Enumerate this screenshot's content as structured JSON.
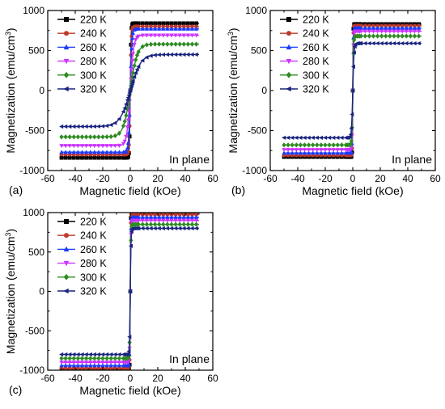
{
  "series_styles": [
    {
      "color": "#000000",
      "marker": "square"
    },
    {
      "color": "#c0392b",
      "marker": "circle"
    },
    {
      "color": "#1a3cff",
      "marker": "triangle-up"
    },
    {
      "color": "#cc33ff",
      "marker": "triangle-down"
    },
    {
      "color": "#2e8b22",
      "marker": "diamond"
    },
    {
      "color": "#1a237e",
      "marker": "triangle-left"
    }
  ],
  "chart_data": [
    {
      "type": "line",
      "panel_label": "(a)",
      "annotation": "In plane",
      "xlabel": "Magnetic field (kOe)",
      "ylabel_main": "Magnetization (emu/cm",
      "ylabel_sup": "3",
      "ylabel_close": ")",
      "xlim": [
        -60,
        60
      ],
      "ylim": [
        -1000,
        1000
      ],
      "xticks": [
        -60,
        -40,
        -20,
        0,
        20,
        40,
        60
      ],
      "yticks": [
        -1000,
        -500,
        0,
        500,
        1000
      ],
      "grid": false,
      "legend_position": "top-left",
      "series": [
        {
          "name": "220 K",
          "ms": 840,
          "h0": 0.6
        },
        {
          "name": "240 K",
          "ms": 800,
          "h0": 0.8
        },
        {
          "name": "260 K",
          "ms": 770,
          "h0": 1.2
        },
        {
          "name": "280 K",
          "ms": 690,
          "h0": 2.5
        },
        {
          "name": "300 K",
          "ms": 580,
          "h0": 5.0
        },
        {
          "name": "320 K",
          "ms": 450,
          "h0": 7.5
        }
      ]
    },
    {
      "type": "line",
      "panel_label": "(b)",
      "annotation": "In plane",
      "xlabel": "Magnetic field (kOe)",
      "ylabel_main": "Magnetization (emu/cm",
      "ylabel_sup": "3",
      "ylabel_close": ")",
      "xlim": [
        -60,
        60
      ],
      "ylim": [
        -1000,
        1000
      ],
      "xticks": [
        -60,
        -40,
        -20,
        0,
        20,
        40,
        60
      ],
      "yticks": [
        -1000,
        -500,
        0,
        500,
        1000
      ],
      "grid": false,
      "legend_position": "top-left",
      "series": [
        {
          "name": "220 K",
          "ms": 830,
          "h0": 0.3
        },
        {
          "name": "240 K",
          "ms": 810,
          "h0": 0.35
        },
        {
          "name": "260 K",
          "ms": 780,
          "h0": 0.4
        },
        {
          "name": "280 K",
          "ms": 740,
          "h0": 0.5
        },
        {
          "name": "300 K",
          "ms": 680,
          "h0": 0.6
        },
        {
          "name": "320 K",
          "ms": 590,
          "h0": 0.9
        }
      ]
    },
    {
      "type": "line",
      "panel_label": "(c)",
      "annotation": "In plane",
      "xlabel": "Magnetic field (kOe)",
      "ylabel_main": "Magnetization (emu/cm",
      "ylabel_sup": "3",
      "ylabel_close": ")",
      "xlim": [
        -60,
        60
      ],
      "ylim": [
        -1000,
        1000
      ],
      "xticks": [
        -60,
        -40,
        -20,
        0,
        20,
        40,
        60
      ],
      "yticks": [
        -1000,
        -500,
        0,
        500,
        1000
      ],
      "grid": false,
      "legend_position": "top-left",
      "series": [
        {
          "name": "220 K",
          "ms": 1000,
          "h0": 0.3
        },
        {
          "name": "240 K",
          "ms": 975,
          "h0": 0.35
        },
        {
          "name": "260 K",
          "ms": 940,
          "h0": 0.4
        },
        {
          "name": "280 K",
          "ms": 900,
          "h0": 0.45
        },
        {
          "name": "300 K",
          "ms": 850,
          "h0": 0.5
        },
        {
          "name": "320 K",
          "ms": 800,
          "h0": 0.55
        }
      ]
    }
  ]
}
